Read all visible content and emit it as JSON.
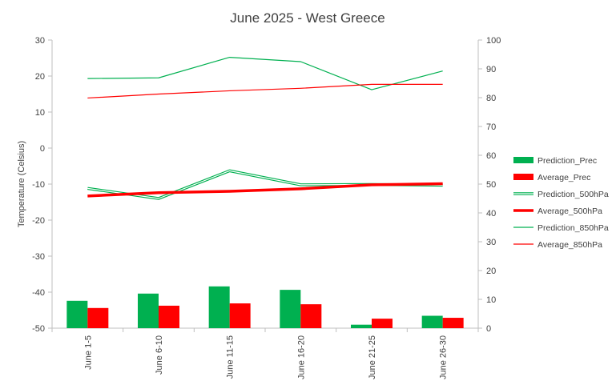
{
  "chart_data": {
    "type": "bar",
    "title": "June 2025 - West Greece",
    "categories": [
      "June 1-5",
      "June 6-10",
      "June 11-15",
      "June 16-20",
      "June 21-25",
      "June 26-30"
    ],
    "left_axis": {
      "label": "Temperature (Celsius)",
      "ylim": [
        -50,
        30
      ],
      "ticks": [
        30,
        20,
        10,
        0,
        -10,
        -20,
        -30,
        -40,
        -50
      ]
    },
    "right_axis": {
      "label": "",
      "ylim": [
        0,
        100
      ],
      "ticks": [
        100,
        90,
        80,
        70,
        60,
        50,
        40,
        30,
        20,
        10,
        0
      ]
    },
    "grid": false,
    "legend_position": "right",
    "series": [
      {
        "name": "Prediction_Prec",
        "kind": "bar",
        "axis": "right",
        "color": "#00b050",
        "values": [
          9.5,
          12,
          14.5,
          13.3,
          1.2,
          4.3
        ]
      },
      {
        "name": "Average_Prec",
        "kind": "bar",
        "axis": "right",
        "color": "#ff0000",
        "values": [
          7,
          7.8,
          8.6,
          8.3,
          3.3,
          3.6
        ]
      },
      {
        "name": "Prediction_500hPa",
        "kind": "line",
        "style": "double",
        "axis": "left",
        "color": "#00b050",
        "values": [
          -11.2,
          -14,
          -6.3,
          -10.2,
          -10.1,
          -10.3
        ]
      },
      {
        "name": "Average_500hPa",
        "kind": "line",
        "style": "thick",
        "axis": "left",
        "color": "#ff0000",
        "values": [
          -13.3,
          -12.4,
          -12,
          -11.3,
          -10.2,
          -9.9
        ]
      },
      {
        "name": "Prediction_850hPa",
        "kind": "line",
        "style": "thin",
        "axis": "left",
        "color": "#00b050",
        "values": [
          19.3,
          19.5,
          25.2,
          24,
          16.2,
          21.4
        ]
      },
      {
        "name": "Average_850hPa",
        "kind": "line",
        "style": "thin",
        "axis": "left",
        "color": "#ff0000",
        "values": [
          13.9,
          15,
          15.9,
          16.6,
          17.7,
          17.7
        ]
      }
    ]
  }
}
